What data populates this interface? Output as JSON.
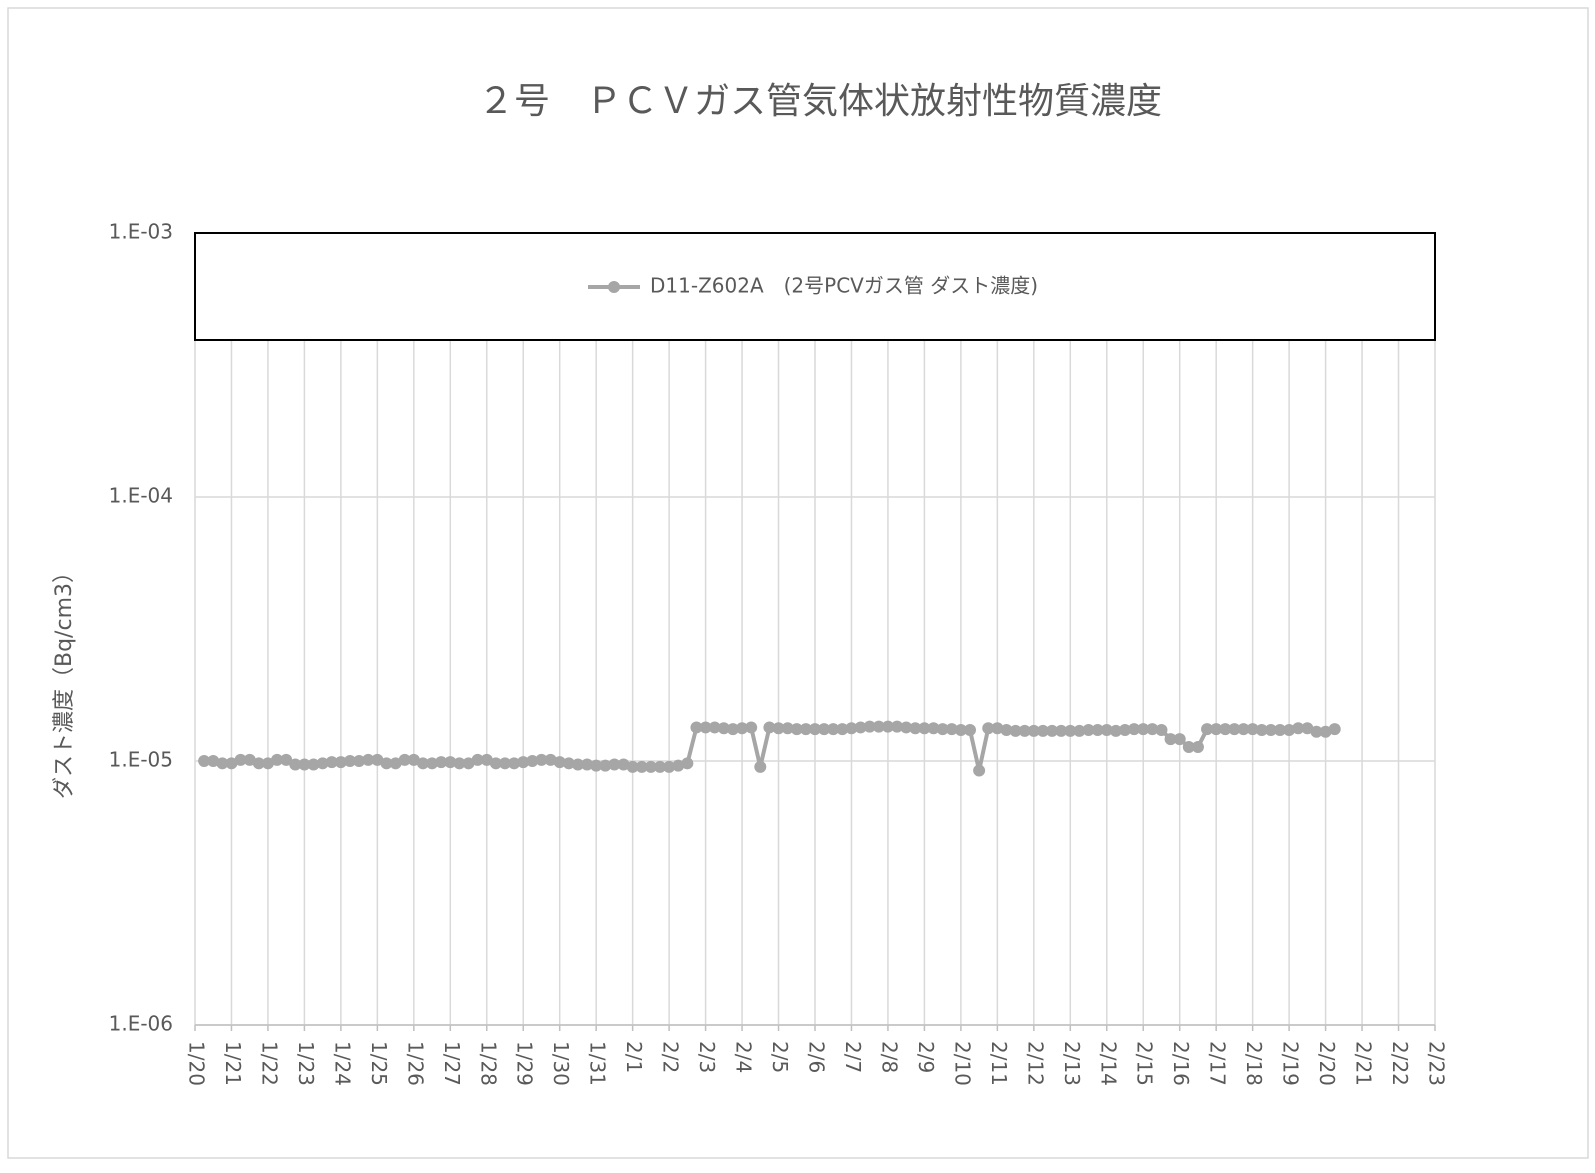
{
  "chart_data": {
    "type": "line",
    "title": "２号　ＰＣＶガス管気体状放射性物質濃度",
    "y_label": "ダスト濃度（Bq/cm3）",
    "yscale": "log",
    "grid": true,
    "legend": "top",
    "xlim": [
      0,
      34
    ],
    "xticks": [
      {
        "value": 0,
        "label": "1/20"
      },
      {
        "value": 1,
        "label": "1/21"
      },
      {
        "value": 2,
        "label": "1/22"
      },
      {
        "value": 3,
        "label": "1/23"
      },
      {
        "value": 4,
        "label": "1/24"
      },
      {
        "value": 5,
        "label": "1/25"
      },
      {
        "value": 6,
        "label": "1/26"
      },
      {
        "value": 7,
        "label": "1/27"
      },
      {
        "value": 8,
        "label": "1/28"
      },
      {
        "value": 9,
        "label": "1/29"
      },
      {
        "value": 10,
        "label": "1/30"
      },
      {
        "value": 11,
        "label": "1/31"
      },
      {
        "value": 12,
        "label": "2/1"
      },
      {
        "value": 13,
        "label": "2/2"
      },
      {
        "value": 14,
        "label": "2/3"
      },
      {
        "value": 15,
        "label": "2/4"
      },
      {
        "value": 16,
        "label": "2/5"
      },
      {
        "value": 17,
        "label": "2/6"
      },
      {
        "value": 18,
        "label": "2/7"
      },
      {
        "value": 19,
        "label": "2/8"
      },
      {
        "value": 20,
        "label": "2/9"
      },
      {
        "value": 21,
        "label": "2/10"
      },
      {
        "value": 22,
        "label": "2/11"
      },
      {
        "value": 23,
        "label": "2/12"
      },
      {
        "value": 24,
        "label": "2/13"
      },
      {
        "value": 25,
        "label": "2/14"
      },
      {
        "value": 26,
        "label": "2/15"
      },
      {
        "value": 27,
        "label": "2/16"
      },
      {
        "value": 28,
        "label": "2/17"
      },
      {
        "value": 29,
        "label": "2/18"
      },
      {
        "value": 30,
        "label": "2/19"
      },
      {
        "value": 31,
        "label": "2/20"
      },
      {
        "value": 32,
        "label": "2/21"
      },
      {
        "value": 33,
        "label": "2/22"
      },
      {
        "value": 34,
        "label": "2/23"
      }
    ],
    "ylim": [
      1e-06,
      0.001
    ],
    "yticks": [
      {
        "value": 1e-06,
        "label": "1.E-06"
      },
      {
        "value": 1e-05,
        "label": "1.E-05"
      },
      {
        "value": 0.0001,
        "label": "1.E-04"
      },
      {
        "value": 0.001,
        "label": "1.E-03"
      }
    ],
    "x": [
      0.25,
      0.5,
      0.75,
      1,
      1.25,
      1.5,
      1.75,
      2,
      2.25,
      2.5,
      2.75,
      3,
      3.25,
      3.5,
      3.75,
      4,
      4.25,
      4.5,
      4.75,
      5,
      5.25,
      5.5,
      5.75,
      6,
      6.25,
      6.5,
      6.75,
      7,
      7.25,
      7.5,
      7.75,
      8,
      8.25,
      8.5,
      8.75,
      9,
      9.25,
      9.5,
      9.75,
      10,
      10.25,
      10.5,
      10.75,
      11,
      11.25,
      11.5,
      11.75,
      12,
      12.25,
      12.5,
      12.75,
      13,
      13.25,
      13.5,
      13.75,
      14,
      14.25,
      14.5,
      14.75,
      15,
      15.25,
      15.5,
      15.75,
      16,
      16.25,
      16.5,
      16.75,
      17,
      17.25,
      17.5,
      17.75,
      18,
      18.25,
      18.5,
      18.75,
      19,
      19.25,
      19.5,
      19.75,
      20,
      20.25,
      20.5,
      20.75,
      21,
      21.25,
      21.5,
      21.75,
      22,
      22.25,
      22.5,
      22.75,
      23,
      23.25,
      23.5,
      23.75,
      24,
      24.25,
      24.5,
      24.75,
      25,
      25.25,
      25.5,
      25.75,
      26,
      26.25,
      26.5,
      26.75,
      27,
      27.25,
      27.5,
      27.75,
      28,
      28.25,
      28.5,
      28.75,
      29,
      29.25,
      29.5,
      29.75,
      30,
      30.25,
      30.5,
      30.75,
      31,
      31.25
    ],
    "series": [
      {
        "name": "D11-Z602A　(2号PCVガス管 ダスト濃度)",
        "color": "#a6a6a6",
        "values": [
          1e-05,
          1e-05,
          9.8e-06,
          9.8e-06,
          1.01e-05,
          1.01e-05,
          9.8e-06,
          9.8e-06,
          1.01e-05,
          1.01e-05,
          9.7e-06,
          9.7e-06,
          9.7e-06,
          9.8e-06,
          9.9e-06,
          9.9e-06,
          1e-05,
          1e-05,
          1.01e-05,
          1.01e-05,
          9.8e-06,
          9.8e-06,
          1.01e-05,
          1.01e-05,
          9.8e-06,
          9.8e-06,
          9.9e-06,
          9.9e-06,
          9.8e-06,
          9.8e-06,
          1.01e-05,
          1.01e-05,
          9.8e-06,
          9.8e-06,
          9.8e-06,
          9.9e-06,
          1e-05,
          1.01e-05,
          1.01e-05,
          9.9e-06,
          9.8e-06,
          9.7e-06,
          9.7e-06,
          9.6e-06,
          9.6e-06,
          9.7e-06,
          9.7e-06,
          9.5e-06,
          9.5e-06,
          9.5e-06,
          9.5e-06,
          9.5e-06,
          9.6e-06,
          9.8e-06,
          1.34e-05,
          1.34e-05,
          1.34e-05,
          1.33e-05,
          1.32e-05,
          1.33e-05,
          1.34e-05,
          9.5e-06,
          1.34e-05,
          1.33e-05,
          1.33e-05,
          1.32e-05,
          1.32e-05,
          1.32e-05,
          1.32e-05,
          1.32e-05,
          1.32e-05,
          1.33e-05,
          1.34e-05,
          1.35e-05,
          1.35e-05,
          1.35e-05,
          1.35e-05,
          1.34e-05,
          1.33e-05,
          1.33e-05,
          1.33e-05,
          1.32e-05,
          1.32e-05,
          1.31e-05,
          1.31e-05,
          9.2e-06,
          1.33e-05,
          1.33e-05,
          1.31e-05,
          1.3e-05,
          1.3e-05,
          1.3e-05,
          1.3e-05,
          1.3e-05,
          1.3e-05,
          1.3e-05,
          1.3e-05,
          1.31e-05,
          1.31e-05,
          1.31e-05,
          1.3e-05,
          1.31e-05,
          1.32e-05,
          1.32e-05,
          1.32e-05,
          1.31e-05,
          1.21e-05,
          1.21e-05,
          1.13e-05,
          1.13e-05,
          1.32e-05,
          1.32e-05,
          1.32e-05,
          1.32e-05,
          1.32e-05,
          1.32e-05,
          1.31e-05,
          1.31e-05,
          1.31e-05,
          1.31e-05,
          1.33e-05,
          1.33e-05,
          1.29e-05,
          1.29e-05,
          1.32e-05
        ]
      }
    ]
  }
}
